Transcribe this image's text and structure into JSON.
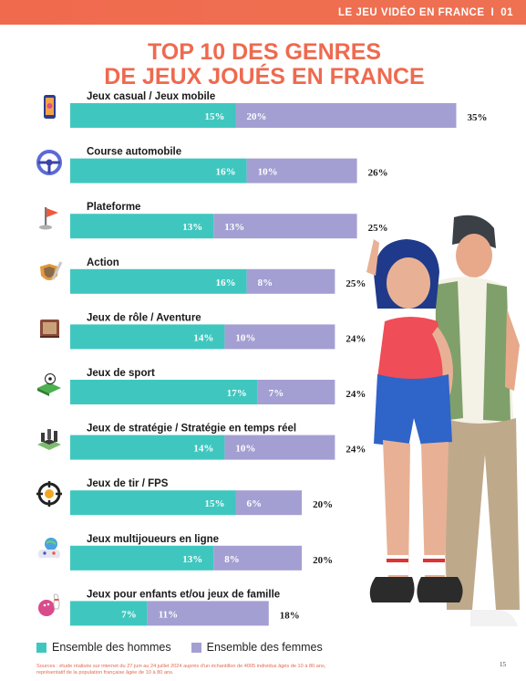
{
  "header": {
    "section_title": "LE JEU VIDÉO EN FRANCE",
    "separator": "I",
    "page_section": "01"
  },
  "title_line1": "TOP 10 DES GENRES",
  "title_line2": "DE JEUX JOUÉS EN FRANCE",
  "colors": {
    "hommes": "#3fc7bf",
    "femmes": "#a49fd2",
    "accent": "#ee6a4f"
  },
  "chart_data": {
    "type": "bar",
    "orientation": "horizontal-stacked",
    "unit": "%",
    "categories": [
      "Jeux casual / Jeux mobile",
      "Course automobile",
      "Plateforme",
      "Action",
      "Jeux de rôle / Aventure",
      "Jeux de sport",
      "Jeux de stratégie / Stratégie en temps réel",
      "Jeux de tir / FPS",
      "Jeux multijoueurs en ligne",
      "Jeux pour enfants et/ou jeux de famille"
    ],
    "series": [
      {
        "name": "Ensemble des hommes",
        "values": [
          15,
          16,
          13,
          16,
          14,
          17,
          14,
          15,
          13,
          7
        ]
      },
      {
        "name": "Ensemble des femmes",
        "values": [
          20,
          10,
          13,
          8,
          10,
          7,
          10,
          6,
          8,
          11
        ]
      }
    ],
    "totals": [
      35,
      26,
      25,
      25,
      24,
      24,
      24,
      20,
      20,
      18
    ],
    "icons": [
      "smartphone-icon",
      "steering-wheel-icon",
      "flag-icon",
      "sword-shield-icon",
      "book-icon",
      "football-field-icon",
      "chess-board-icon",
      "crosshair-icon",
      "gamepad-globe-icon",
      "bowling-icon"
    ],
    "legend": {
      "placement": "bottom-left"
    }
  },
  "legend": {
    "hommes": "Ensemble des hommes",
    "femmes": "Ensemble des femmes"
  },
  "source_line1": "Sources : étude réalisée sur internet du 27 juin au 24 juillet 2024 auprès d'un échantillon de 4005 individus âgés de 10 à 80 ans,",
  "source_line2": "représentatif de la population française âgée de 10 à 80 ans.",
  "page_number": "15"
}
